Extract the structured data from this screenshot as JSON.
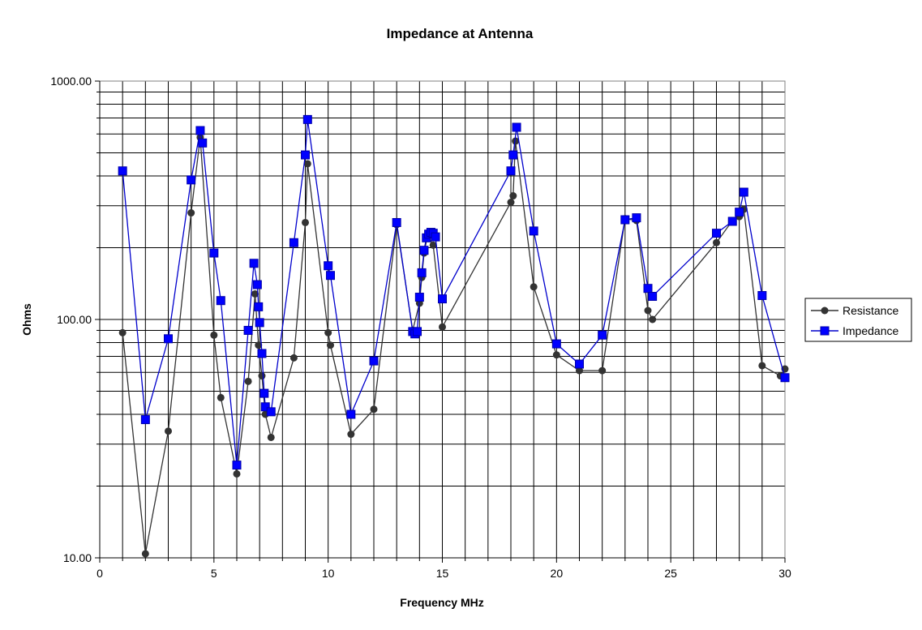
{
  "chart_data": {
    "type": "line",
    "title": "Impedance at Antenna",
    "xlabel": "Frequency MHz",
    "ylabel": "Ohms",
    "xlim": [
      0,
      30
    ],
    "ylim": [
      10,
      1000
    ],
    "yscale": "log",
    "grid": true,
    "legend": "right",
    "x_ticks": [
      "0",
      "5",
      "10",
      "15",
      "20",
      "25",
      "30"
    ],
    "y_ticks": [
      "10.00",
      "100.00",
      "1000.00"
    ],
    "series": [
      {
        "name": "Resistance",
        "color": "#333333",
        "marker": "circle",
        "points": [
          [
            1,
            88
          ],
          [
            2,
            10.4
          ],
          [
            3,
            34
          ],
          [
            4,
            280
          ],
          [
            4.4,
            580
          ],
          [
            5,
            86
          ],
          [
            5.3,
            47
          ],
          [
            6,
            22.5
          ],
          [
            6.5,
            55
          ],
          [
            6.8,
            128
          ],
          [
            6.95,
            78
          ],
          [
            7.1,
            58
          ],
          [
            7.25,
            40
          ],
          [
            7.5,
            32
          ],
          [
            8.5,
            69
          ],
          [
            9,
            255
          ],
          [
            9.1,
            450
          ],
          [
            10,
            88
          ],
          [
            10.1,
            78
          ],
          [
            11,
            33
          ],
          [
            12,
            42
          ],
          [
            13,
            250
          ],
          [
            13.7,
            90
          ],
          [
            14,
            117
          ],
          [
            14.1,
            150
          ],
          [
            14.2,
            190
          ],
          [
            14.35,
            225
          ],
          [
            14.6,
            205
          ],
          [
            15,
            93
          ],
          [
            18,
            310
          ],
          [
            18.1,
            330
          ],
          [
            18.2,
            560
          ],
          [
            19,
            137
          ],
          [
            20,
            71
          ],
          [
            21,
            61
          ],
          [
            22,
            61
          ],
          [
            23,
            265
          ],
          [
            23.5,
            260
          ],
          [
            24,
            109
          ],
          [
            24.2,
            100
          ],
          [
            27,
            210
          ],
          [
            27.7,
            260
          ],
          [
            28,
            270
          ],
          [
            28.2,
            290
          ],
          [
            29,
            64
          ],
          [
            29.8,
            58
          ],
          [
            30,
            62
          ]
        ]
      },
      {
        "name": "Impedance",
        "color": "#0000cc",
        "marker": "square",
        "points": [
          [
            1,
            420
          ],
          [
            2,
            38
          ],
          [
            3,
            83
          ],
          [
            4,
            385
          ],
          [
            4.4,
            620
          ],
          [
            4.5,
            550
          ],
          [
            5,
            190
          ],
          [
            5.3,
            120
          ],
          [
            6,
            24.5
          ],
          [
            6.5,
            90
          ],
          [
            6.75,
            172
          ],
          [
            6.9,
            140
          ],
          [
            6.95,
            113
          ],
          [
            7.0,
            97
          ],
          [
            7.1,
            72
          ],
          [
            7.2,
            49
          ],
          [
            7.25,
            43
          ],
          [
            7.5,
            41
          ],
          [
            8.5,
            210
          ],
          [
            9,
            490
          ],
          [
            9.1,
            690
          ],
          [
            10,
            168
          ],
          [
            10.1,
            153
          ],
          [
            11,
            40
          ],
          [
            12,
            67
          ],
          [
            13,
            255
          ],
          [
            13.7,
            89
          ],
          [
            13.8,
            87
          ],
          [
            13.9,
            89
          ],
          [
            14,
            124
          ],
          [
            14.1,
            157
          ],
          [
            14.2,
            195
          ],
          [
            14.3,
            220
          ],
          [
            14.4,
            228
          ],
          [
            14.5,
            232
          ],
          [
            14.6,
            230
          ],
          [
            14.7,
            222
          ],
          [
            15,
            122
          ],
          [
            18,
            420
          ],
          [
            18.1,
            490
          ],
          [
            18.25,
            640
          ],
          [
            19,
            235
          ],
          [
            20,
            79
          ],
          [
            21,
            65
          ],
          [
            22,
            86
          ],
          [
            23,
            262
          ],
          [
            23.5,
            267
          ],
          [
            24,
            135
          ],
          [
            24.2,
            125
          ],
          [
            27,
            230
          ],
          [
            27.7,
            258
          ],
          [
            28,
            282
          ],
          [
            28.2,
            342
          ],
          [
            29,
            126
          ],
          [
            30,
            57
          ]
        ]
      }
    ]
  }
}
